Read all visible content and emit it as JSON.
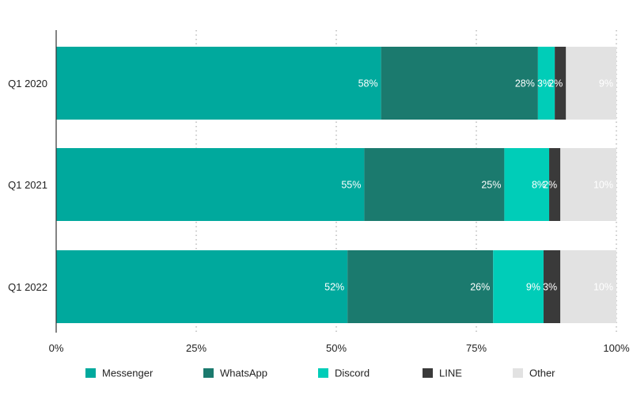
{
  "chart_data": {
    "type": "bar",
    "orientation": "horizontal",
    "stacked": true,
    "categories": [
      "Q1 2020",
      "Q1 2021",
      "Q1 2022"
    ],
    "series": [
      {
        "name": "Messenger",
        "values": [
          58,
          55,
          52
        ],
        "labels": [
          "58%",
          "55%",
          "52%"
        ],
        "color": "#00a99d"
      },
      {
        "name": "WhatsApp",
        "values": [
          28,
          25,
          26
        ],
        "labels": [
          "28%",
          "25%",
          "26%"
        ],
        "color": "#1b7a6e"
      },
      {
        "name": "Discord",
        "values": [
          3,
          8,
          9
        ],
        "labels": [
          "3%",
          "8%",
          "9%"
        ],
        "color": "#00cdb8"
      },
      {
        "name": "LINE",
        "values": [
          2,
          2,
          3
        ],
        "labels": [
          "2%",
          "2%",
          "3%"
        ],
        "color": "#3a3a3a"
      },
      {
        "name": "Other",
        "values": [
          9,
          10,
          10
        ],
        "labels": [
          "9%",
          "10%",
          "10%"
        ],
        "color": "#e2e2e2"
      }
    ],
    "xlim": [
      0,
      100
    ],
    "xticks": [
      0,
      25,
      50,
      75,
      100
    ],
    "xtick_labels": [
      "0%",
      "25%",
      "50%",
      "75%",
      "100%"
    ],
    "grid": "vertical dotted",
    "legend_position": "bottom"
  }
}
